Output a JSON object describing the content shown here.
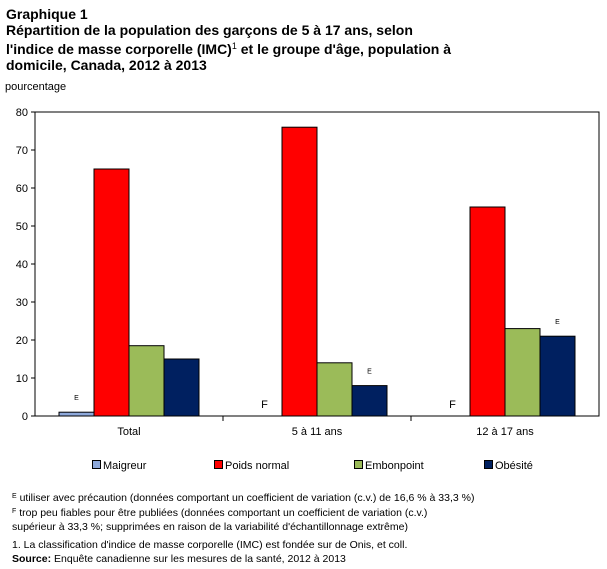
{
  "header": {
    "label": "Graphique 1",
    "title_line1": "Répartition de la population des garçons de 5 à 17 ans, selon",
    "title_line2a": "l'indice de masse corporelle (IMC)",
    "title_line2_sup": "1",
    "title_line2b": " et le groupe d'âge, population à",
    "title_line3": "domicile, Canada, 2012 à 2013"
  },
  "chart_data": {
    "type": "bar",
    "ylabel": "pourcentage",
    "ylim": [
      0,
      80
    ],
    "yticks": [
      0,
      10,
      20,
      30,
      40,
      50,
      60,
      70,
      80
    ],
    "categories": [
      "Total",
      "5 à 11 ans",
      "12 à 17 ans"
    ],
    "series": [
      {
        "name": "Maigreur",
        "color": "#8EA9DB",
        "values": [
          1,
          null,
          null
        ],
        "flags": [
          "E",
          "F",
          "F"
        ]
      },
      {
        "name": "Poids normal",
        "color": "#FF0000",
        "values": [
          65,
          76,
          55
        ],
        "flags": [
          "",
          "",
          ""
        ]
      },
      {
        "name": "Embonpoint",
        "color": "#9BBB59",
        "values": [
          18.5,
          14,
          23
        ],
        "flags": [
          "",
          "",
          ""
        ]
      },
      {
        "name": "Obésité",
        "color": "#002060",
        "values": [
          15,
          8,
          21
        ],
        "flags": [
          "",
          "E",
          "E"
        ]
      }
    ],
    "grid": false,
    "legend_position": "bottom"
  },
  "notes": {
    "e_symbol": "E",
    "e_text": " utiliser avec précaution (données comportant un coefficient de variation (c.v.) de 16,6 % à 33,3 %)",
    "f_symbol": "F",
    "f_text": "  trop peu fiables pour être publiées (données comportant un coefficient de variation (c.v.)",
    "f_text2": "supérieur à 33,3 %; supprimées en raison de la variabilité d'échantillonnage extrême)",
    "footnote1": "1. La classification d'indice de masse corporelle (IMC) est fondée sur de Onis, et coll.",
    "source_label": "Source:",
    "source_text": " Enquête canadienne sur les mesures de la santé, 2012 à 2013"
  }
}
